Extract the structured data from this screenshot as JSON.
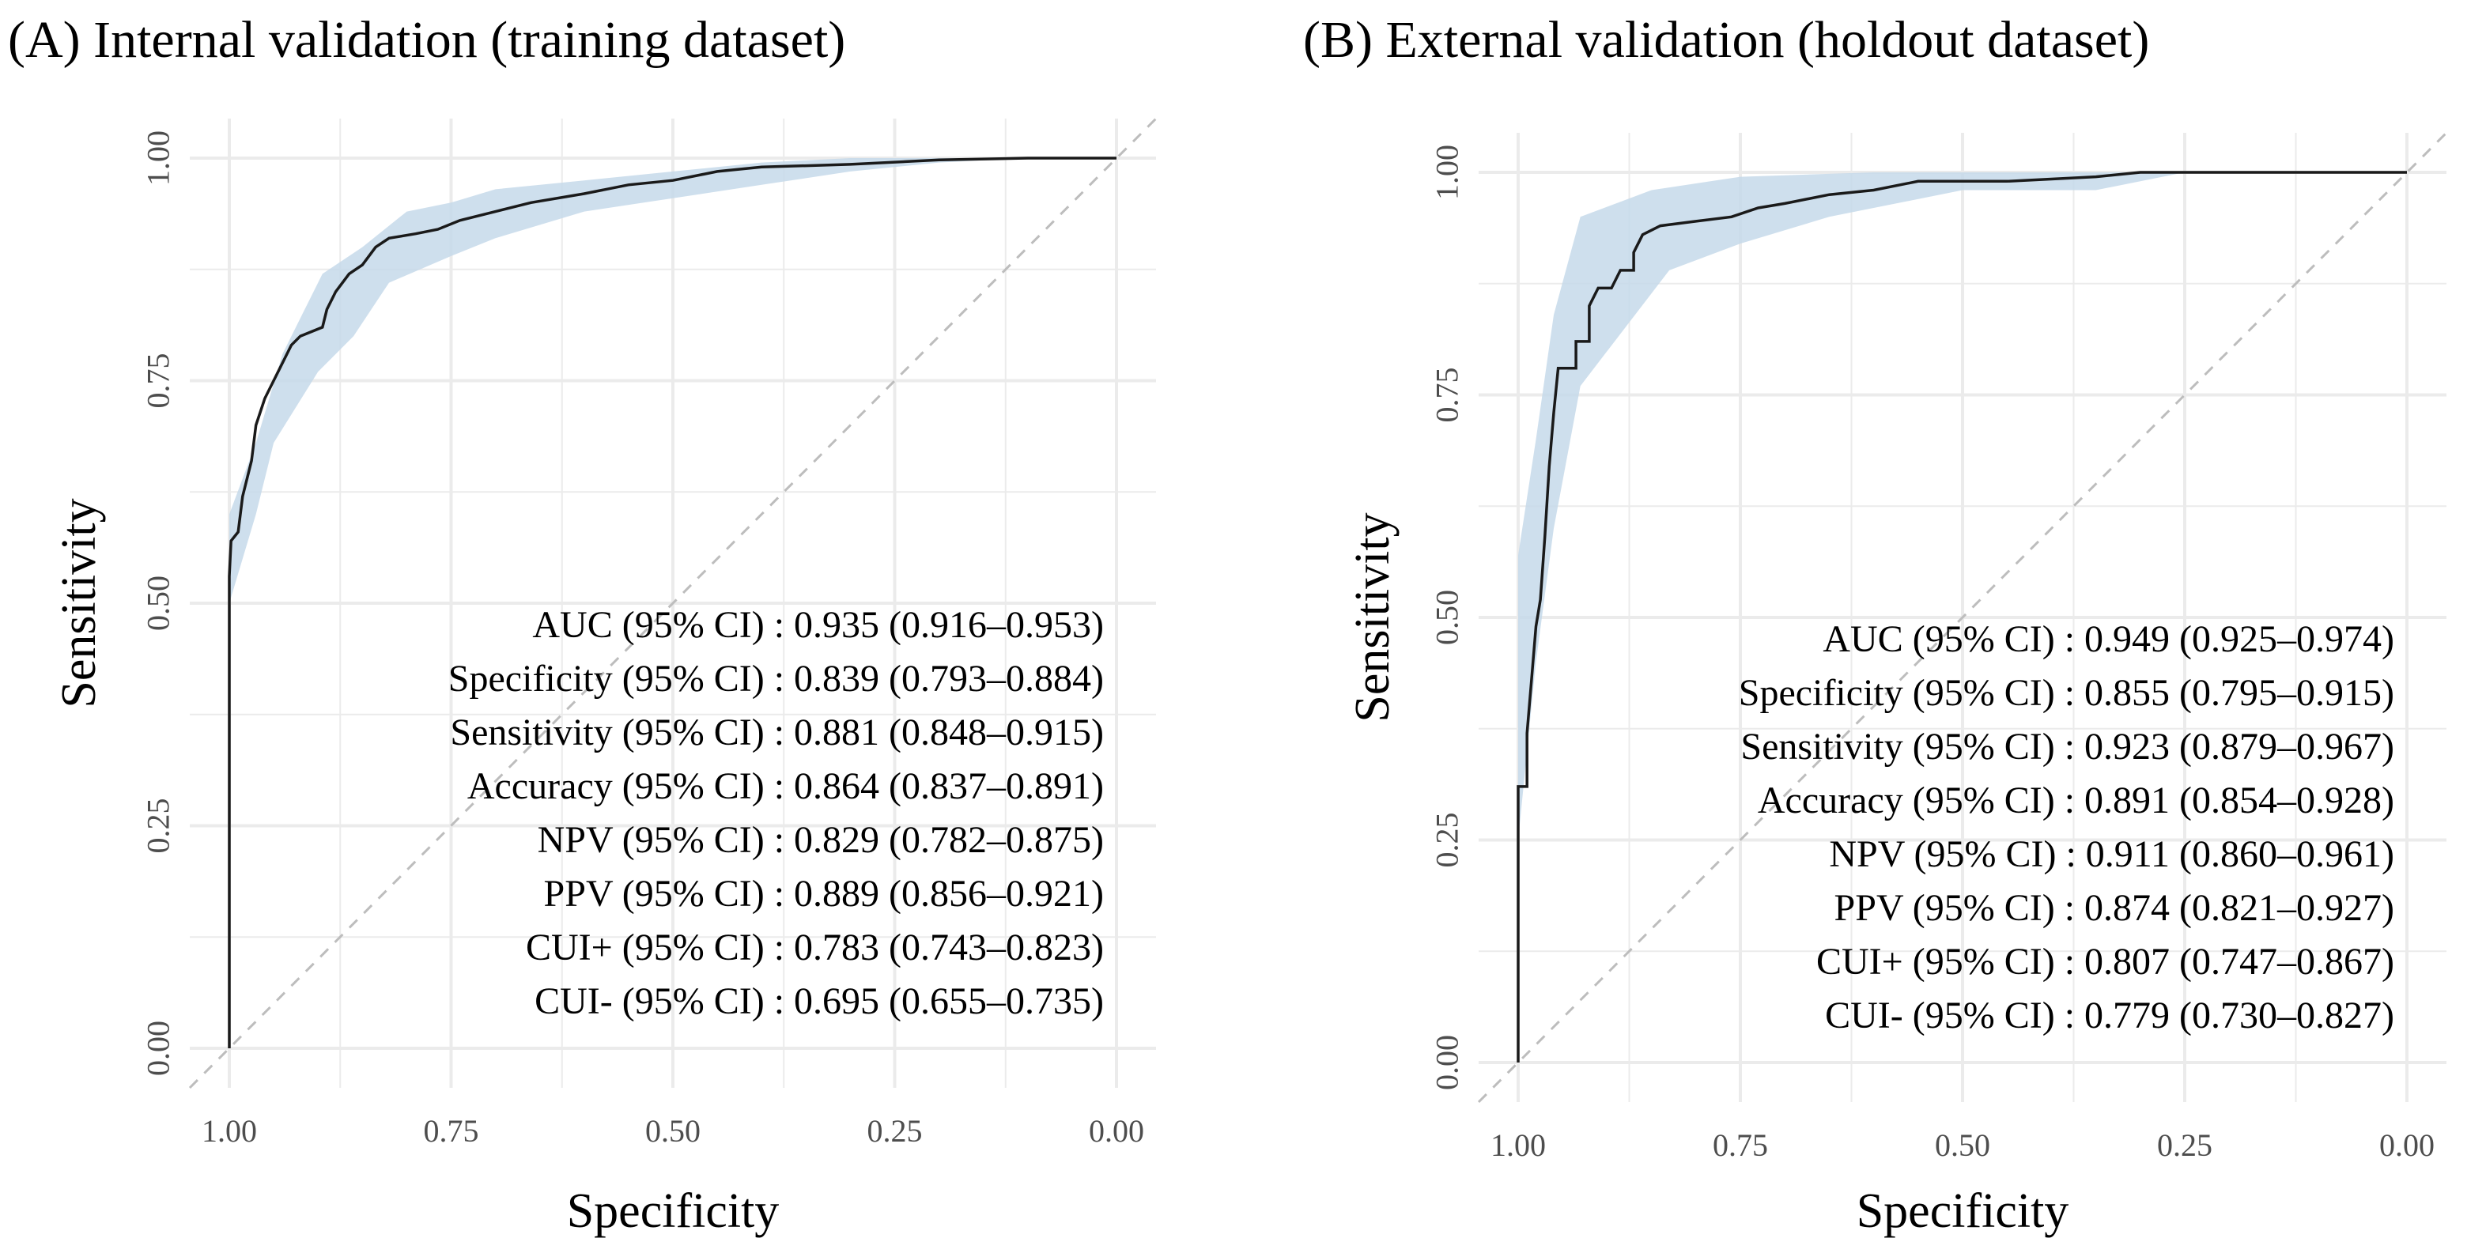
{
  "chart_data": [
    {
      "type": "line",
      "title": "(A) Internal validation (training dataset)",
      "xlabel": "Specificity",
      "ylabel": "Sensitivity",
      "x_reversed": true,
      "xlim": [
        1.0,
        0.0
      ],
      "ylim": [
        0.0,
        1.0
      ],
      "x_ticks": [
        "1.00",
        "0.75",
        "0.50",
        "0.25",
        "0.00"
      ],
      "y_ticks": [
        "0.00",
        "0.25",
        "0.50",
        "0.75",
        "1.00"
      ],
      "grid": true,
      "diagonal_reference": true,
      "series": [
        {
          "name": "ROC curve",
          "points": [
            [
              1.0,
              0.0
            ],
            [
              1.0,
              0.53
            ],
            [
              0.998,
              0.57
            ],
            [
              0.99,
              0.58
            ],
            [
              0.985,
              0.62
            ],
            [
              0.975,
              0.66
            ],
            [
              0.97,
              0.7
            ],
            [
              0.96,
              0.73
            ],
            [
              0.95,
              0.75
            ],
            [
              0.94,
              0.77
            ],
            [
              0.93,
              0.79
            ],
            [
              0.92,
              0.8
            ],
            [
              0.895,
              0.81
            ],
            [
              0.89,
              0.83
            ],
            [
              0.88,
              0.85
            ],
            [
              0.865,
              0.87
            ],
            [
              0.85,
              0.88
            ],
            [
              0.835,
              0.9
            ],
            [
              0.82,
              0.91
            ],
            [
              0.79,
              0.915
            ],
            [
              0.765,
              0.92
            ],
            [
              0.74,
              0.93
            ],
            [
              0.7,
              0.94
            ],
            [
              0.66,
              0.95
            ],
            [
              0.6,
              0.96
            ],
            [
              0.55,
              0.97
            ],
            [
              0.5,
              0.975
            ],
            [
              0.45,
              0.985
            ],
            [
              0.4,
              0.99
            ],
            [
              0.3,
              0.993
            ],
            [
              0.2,
              0.998
            ],
            [
              0.1,
              1.0
            ],
            [
              0.0,
              1.0
            ]
          ]
        }
      ],
      "ci_band": {
        "upper": [
          [
            1.0,
            0.6
          ],
          [
            0.97,
            0.68
          ],
          [
            0.94,
            0.78
          ],
          [
            0.895,
            0.87
          ],
          [
            0.85,
            0.9
          ],
          [
            0.8,
            0.94
          ],
          [
            0.75,
            0.95
          ],
          [
            0.7,
            0.965
          ],
          [
            0.6,
            0.975
          ],
          [
            0.5,
            0.985
          ],
          [
            0.4,
            0.995
          ],
          [
            0.3,
            1.0
          ],
          [
            0.2,
            1.0
          ],
          [
            0.0,
            1.0
          ]
        ],
        "lower": [
          [
            1.0,
            0.5
          ],
          [
            0.97,
            0.6
          ],
          [
            0.95,
            0.68
          ],
          [
            0.9,
            0.76
          ],
          [
            0.86,
            0.8
          ],
          [
            0.82,
            0.86
          ],
          [
            0.75,
            0.89
          ],
          [
            0.7,
            0.91
          ],
          [
            0.6,
            0.94
          ],
          [
            0.5,
            0.955
          ],
          [
            0.4,
            0.97
          ],
          [
            0.3,
            0.985
          ],
          [
            0.2,
            0.995
          ],
          [
            0.1,
            1.0
          ],
          [
            0.0,
            1.0
          ]
        ]
      },
      "annotations": [
        "AUC (95% CI) : 0.935 (0.916–0.953)",
        "Specificity (95% CI) : 0.839 (0.793–0.884)",
        "Sensitivity (95% CI) : 0.881 (0.848–0.915)",
        "Accuracy (95% CI) : 0.864 (0.837–0.891)",
        "NPV (95% CI) : 0.829 (0.782–0.875)",
        "PPV (95% CI) : 0.889 (0.856–0.921)",
        "CUI+ (95% CI) : 0.783 (0.743–0.823)",
        "CUI- (95% CI) : 0.695 (0.655–0.735)"
      ]
    },
    {
      "type": "line",
      "title": "(B) External validation (holdout dataset)",
      "xlabel": "Specificity",
      "ylabel": "Sensitivity",
      "x_reversed": true,
      "xlim": [
        1.0,
        0.0
      ],
      "ylim": [
        0.0,
        1.0
      ],
      "x_ticks": [
        "1.00",
        "0.75",
        "0.50",
        "0.25",
        "0.00"
      ],
      "y_ticks": [
        "0.00",
        "0.25",
        "0.50",
        "0.75",
        "1.00"
      ],
      "grid": true,
      "diagonal_reference": true,
      "series": [
        {
          "name": "ROC curve",
          "points": [
            [
              1.0,
              0.0
            ],
            [
              1.0,
              0.31
            ],
            [
              0.99,
              0.31
            ],
            [
              0.99,
              0.37
            ],
            [
              0.985,
              0.43
            ],
            [
              0.98,
              0.49
            ],
            [
              0.975,
              0.52
            ],
            [
              0.97,
              0.59
            ],
            [
              0.965,
              0.67
            ],
            [
              0.96,
              0.73
            ],
            [
              0.955,
              0.78
            ],
            [
              0.935,
              0.78
            ],
            [
              0.935,
              0.81
            ],
            [
              0.92,
              0.81
            ],
            [
              0.92,
              0.85
            ],
            [
              0.91,
              0.87
            ],
            [
              0.895,
              0.87
            ],
            [
              0.885,
              0.89
            ],
            [
              0.87,
              0.89
            ],
            [
              0.87,
              0.91
            ],
            [
              0.86,
              0.93
            ],
            [
              0.84,
              0.94
            ],
            [
              0.8,
              0.945
            ],
            [
              0.76,
              0.95
            ],
            [
              0.73,
              0.96
            ],
            [
              0.7,
              0.965
            ],
            [
              0.65,
              0.975
            ],
            [
              0.6,
              0.98
            ],
            [
              0.55,
              0.99
            ],
            [
              0.5,
              0.99
            ],
            [
              0.45,
              0.99
            ],
            [
              0.35,
              0.995
            ],
            [
              0.3,
              1.0
            ],
            [
              0.2,
              1.0
            ],
            [
              0.0,
              1.0
            ]
          ]
        }
      ],
      "ci_band": {
        "upper": [
          [
            1.0,
            0.57
          ],
          [
            0.98,
            0.7
          ],
          [
            0.96,
            0.84
          ],
          [
            0.93,
            0.95
          ],
          [
            0.85,
            0.98
          ],
          [
            0.75,
            0.995
          ],
          [
            0.6,
            1.0
          ],
          [
            0.0,
            1.0
          ]
        ],
        "lower": [
          [
            1.0,
            0.25
          ],
          [
            0.98,
            0.45
          ],
          [
            0.96,
            0.6
          ],
          [
            0.93,
            0.76
          ],
          [
            0.83,
            0.89
          ],
          [
            0.75,
            0.92
          ],
          [
            0.65,
            0.95
          ],
          [
            0.5,
            0.98
          ],
          [
            0.35,
            0.98
          ],
          [
            0.25,
            1.0
          ],
          [
            0.0,
            1.0
          ]
        ]
      },
      "annotations": [
        "AUC (95% CI) : 0.949 (0.925–0.974)",
        "Specificity (95% CI) : 0.855 (0.795–0.915)",
        "Sensitivity (95% CI) : 0.923 (0.879–0.967)",
        "Accuracy (95% CI) : 0.891 (0.854–0.928)",
        "NPV (95% CI) : 0.911 (0.860–0.961)",
        "PPV (95% CI) : 0.874 (0.821–0.927)",
        "CUI+ (95% CI) : 0.807 (0.747–0.867)",
        "CUI- (95% CI) : 0.779 (0.730–0.827)"
      ]
    }
  ],
  "colors": {
    "curve": "#1a1a1a",
    "ci_band": "#c6d9ea",
    "grid": "#ebebeb",
    "diagonal": "#bdbdbd",
    "tick_text": "#4d4d4d"
  }
}
